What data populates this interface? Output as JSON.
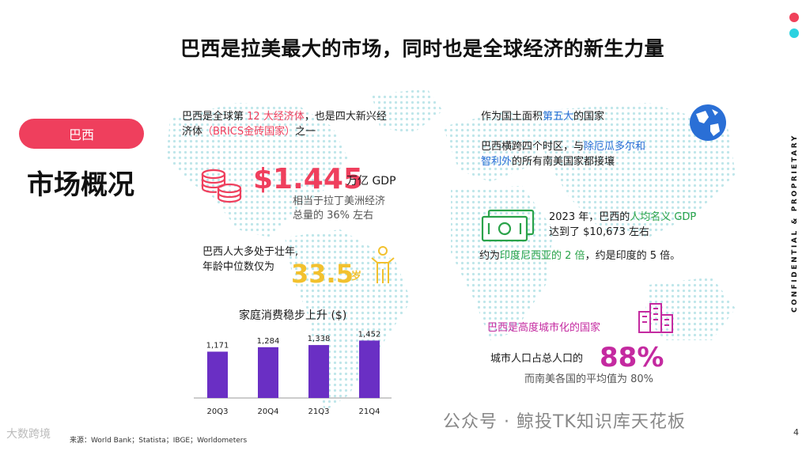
{
  "title": "巴西是拉美最大的市场，同时也是全球经济的新生力量",
  "pill_label": "巴西",
  "heading": "市场概况",
  "side_text": "CONFIDENTIAL & PROPRIETARY",
  "gdp_block": {
    "line1_a": "巴西是全球第 ",
    "line1_b": "12 大经济体",
    "line1_c": "，也是四大新兴经",
    "line2_a": "济体",
    "line2_b": "（BRICS金砖国家）",
    "line2_c": "之一",
    "value": "$1.445",
    "unit": "万亿 GDP",
    "note1": "相当于拉丁美洲经济",
    "note2": "总量的 36% 左右"
  },
  "age_block": {
    "line1": "巴西人大多处于壮年,",
    "line2": "年龄中位数仅为",
    "value": "33.5",
    "unit": "岁"
  },
  "area_block": {
    "line1_a": "作为国土面积",
    "line1_b": "第五大",
    "line1_c": "的国家",
    "line2_a": "巴西横跨四个时区，与",
    "line2_b": "除厄瓜多尔和",
    "line3_a": "智利外",
    "line3_b": "的所有南美国家都接壤"
  },
  "income_block": {
    "line1_a": "2023 年，巴西的",
    "line1_b": "人均名义 GDP",
    "line2": "达到了 $10,673 左右",
    "line3_a": "约为",
    "line3_b": "印度尼西亚的 2 倍",
    "line3_c": "，约是印度的 5 倍。"
  },
  "urban_block": {
    "line1": "巴西是高度城市化的国家",
    "line2": "城市人口占总人口的",
    "value": "88%",
    "line3": "而南美各国的平均值为 80%"
  },
  "chart_data": {
    "type": "bar",
    "title": "家庭消费稳步上升 ($)",
    "categories": [
      "20Q3",
      "20Q4",
      "21Q3",
      "21Q4"
    ],
    "values": [
      1171,
      1284,
      1338,
      1452
    ],
    "value_labels": [
      "1,171",
      "1,284",
      "1,338",
      "1,452"
    ],
    "color": "#6a2fc4",
    "ylim": [
      0,
      1600
    ]
  },
  "source": "来源：World Bank；Statista；IBGE；Worldometers",
  "watermark_left": "大数跨境",
  "watermark_right": "公众号 · 鲸投TK知识库天花板",
  "page_number": "4",
  "colors": {
    "accent_red": "#ef3f5d",
    "accent_cyan": "#2bd2e0",
    "bar_purple": "#6a2fc4",
    "map_dots": "#bfe6ea"
  }
}
